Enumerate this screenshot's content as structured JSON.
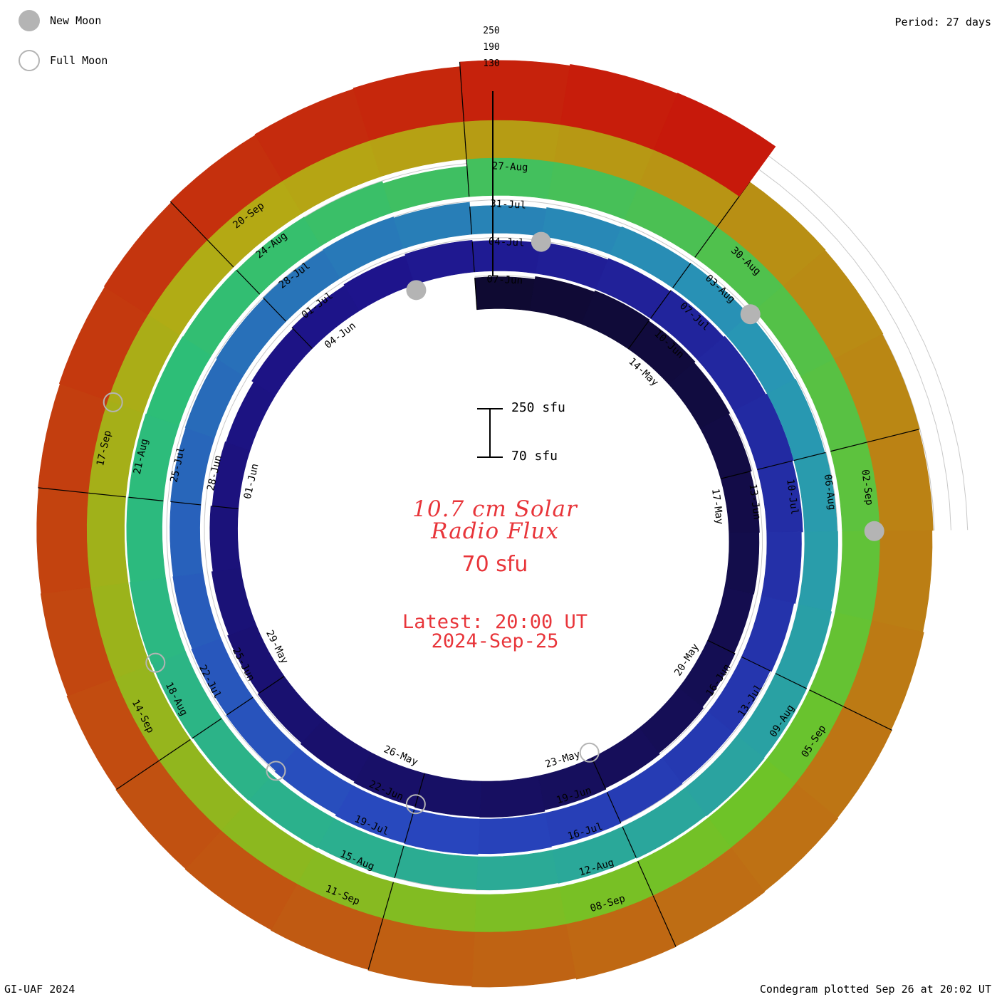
{
  "chart_data": {
    "type": "condegram",
    "title_line1": "10.7 cm Solar",
    "title_line2": "Radio Flux",
    "min_value_label": "70 sfu",
    "latest_time": "Latest: 20:00 UT",
    "latest_date": "2024-Sep-25",
    "period": "Period: 27 days",
    "scale_bar": {
      "max": "250 sfu",
      "min": "70 sfu"
    },
    "ring_scale_ticks": [
      "250",
      "190",
      "130"
    ],
    "legend": [
      {
        "symbol": "new-moon",
        "label": "New Moon"
      },
      {
        "symbol": "full-moon",
        "label": "Full Moon"
      }
    ],
    "credit": "GI-UAF 2024",
    "plotted": "Condegram plotted Sep 26 at 20:02 UT",
    "rotations": [
      {
        "start": "2024-05-11",
        "values": [
          185,
          195,
          200,
          195,
          190,
          185,
          180,
          178,
          176,
          180,
          185,
          190,
          195,
          200,
          198,
          195,
          190,
          185,
          180,
          175,
          170,
          165,
          162,
          170,
          175,
          180,
          185
        ]
      },
      {
        "start": "2024-06-07",
        "values": [
          180,
          185,
          190,
          195,
          200,
          205,
          200,
          195,
          190,
          185,
          185,
          188,
          192,
          195,
          198,
          195,
          190,
          186,
          183,
          180,
          178,
          180,
          182,
          185,
          188,
          190,
          186
        ]
      },
      {
        "start": "2024-07-04",
        "values": [
          170,
          175,
          178,
          180,
          182,
          185,
          188,
          190,
          193,
          195,
          197,
          195,
          192,
          190,
          188,
          190,
          193,
          195,
          198,
          200,
          198,
          196,
          194,
          192,
          190,
          188,
          180
        ]
      },
      {
        "start": "2024-07-31",
        "values": [
          215,
          220,
          225,
          230,
          235,
          240,
          238,
          235,
          230,
          225,
          210,
          205,
          215,
          225,
          235,
          240,
          238,
          235,
          232,
          230,
          228,
          225,
          222,
          220,
          218,
          215,
          210
        ]
      },
      {
        "start": "2024-08-27",
        "values": [
          260,
          265,
          268,
          270,
          268,
          265,
          262,
          258,
          262,
          265,
          268,
          270,
          272,
          268,
          265,
          262,
          260,
          258,
          255,
          252,
          250,
          252,
          255,
          258,
          262,
          265,
          268
        ]
      },
      {
        "start": "2024-09-23",
        "values": [
          285,
          290,
          292
        ]
      }
    ],
    "date_labels": [
      {
        "text": "14-May"
      },
      {
        "text": "17-May"
      },
      {
        "text": "20-May"
      },
      {
        "text": "23-May"
      },
      {
        "text": "26-May"
      },
      {
        "text": "29-May"
      },
      {
        "text": "01-Jun"
      },
      {
        "text": "04-Jun"
      },
      {
        "text": "07-Jun"
      },
      {
        "text": "10-Jun"
      },
      {
        "text": "13-Jun"
      },
      {
        "text": "16-Jun"
      },
      {
        "text": "19-Jun"
      },
      {
        "text": "22-Jun"
      },
      {
        "text": "25-Jun"
      },
      {
        "text": "28-Jun"
      },
      {
        "text": "01-Jul"
      },
      {
        "text": "04-Jul"
      },
      {
        "text": "07-Jul"
      },
      {
        "text": "10-Jul"
      },
      {
        "text": "13-Jul"
      },
      {
        "text": "16-Jul"
      },
      {
        "text": "19-Jul"
      },
      {
        "text": "22-Jul"
      },
      {
        "text": "25-Jul"
      },
      {
        "text": "28-Jul"
      },
      {
        "text": "31-Jul"
      },
      {
        "text": "03-Aug"
      },
      {
        "text": "06-Aug"
      },
      {
        "text": "09-Aug"
      },
      {
        "text": "12-Aug"
      },
      {
        "text": "15-Aug"
      },
      {
        "text": "18-Aug"
      },
      {
        "text": "21-Aug"
      },
      {
        "text": "24-Aug"
      },
      {
        "text": "27-Aug"
      },
      {
        "text": "30-Aug"
      },
      {
        "text": "02-Sep"
      },
      {
        "text": "05-Sep"
      },
      {
        "text": "08-Sep"
      },
      {
        "text": "11-Sep"
      },
      {
        "text": "14-Sep"
      },
      {
        "text": "17-Sep"
      },
      {
        "text": "20-Sep"
      }
    ],
    "new_moons": [
      "2024-06-06",
      "2024-07-05",
      "2024-08-04",
      "2024-09-03"
    ],
    "full_moons": [
      "2024-05-23",
      "2024-06-22",
      "2024-07-21",
      "2024-08-19",
      "2024-09-18"
    ]
  }
}
